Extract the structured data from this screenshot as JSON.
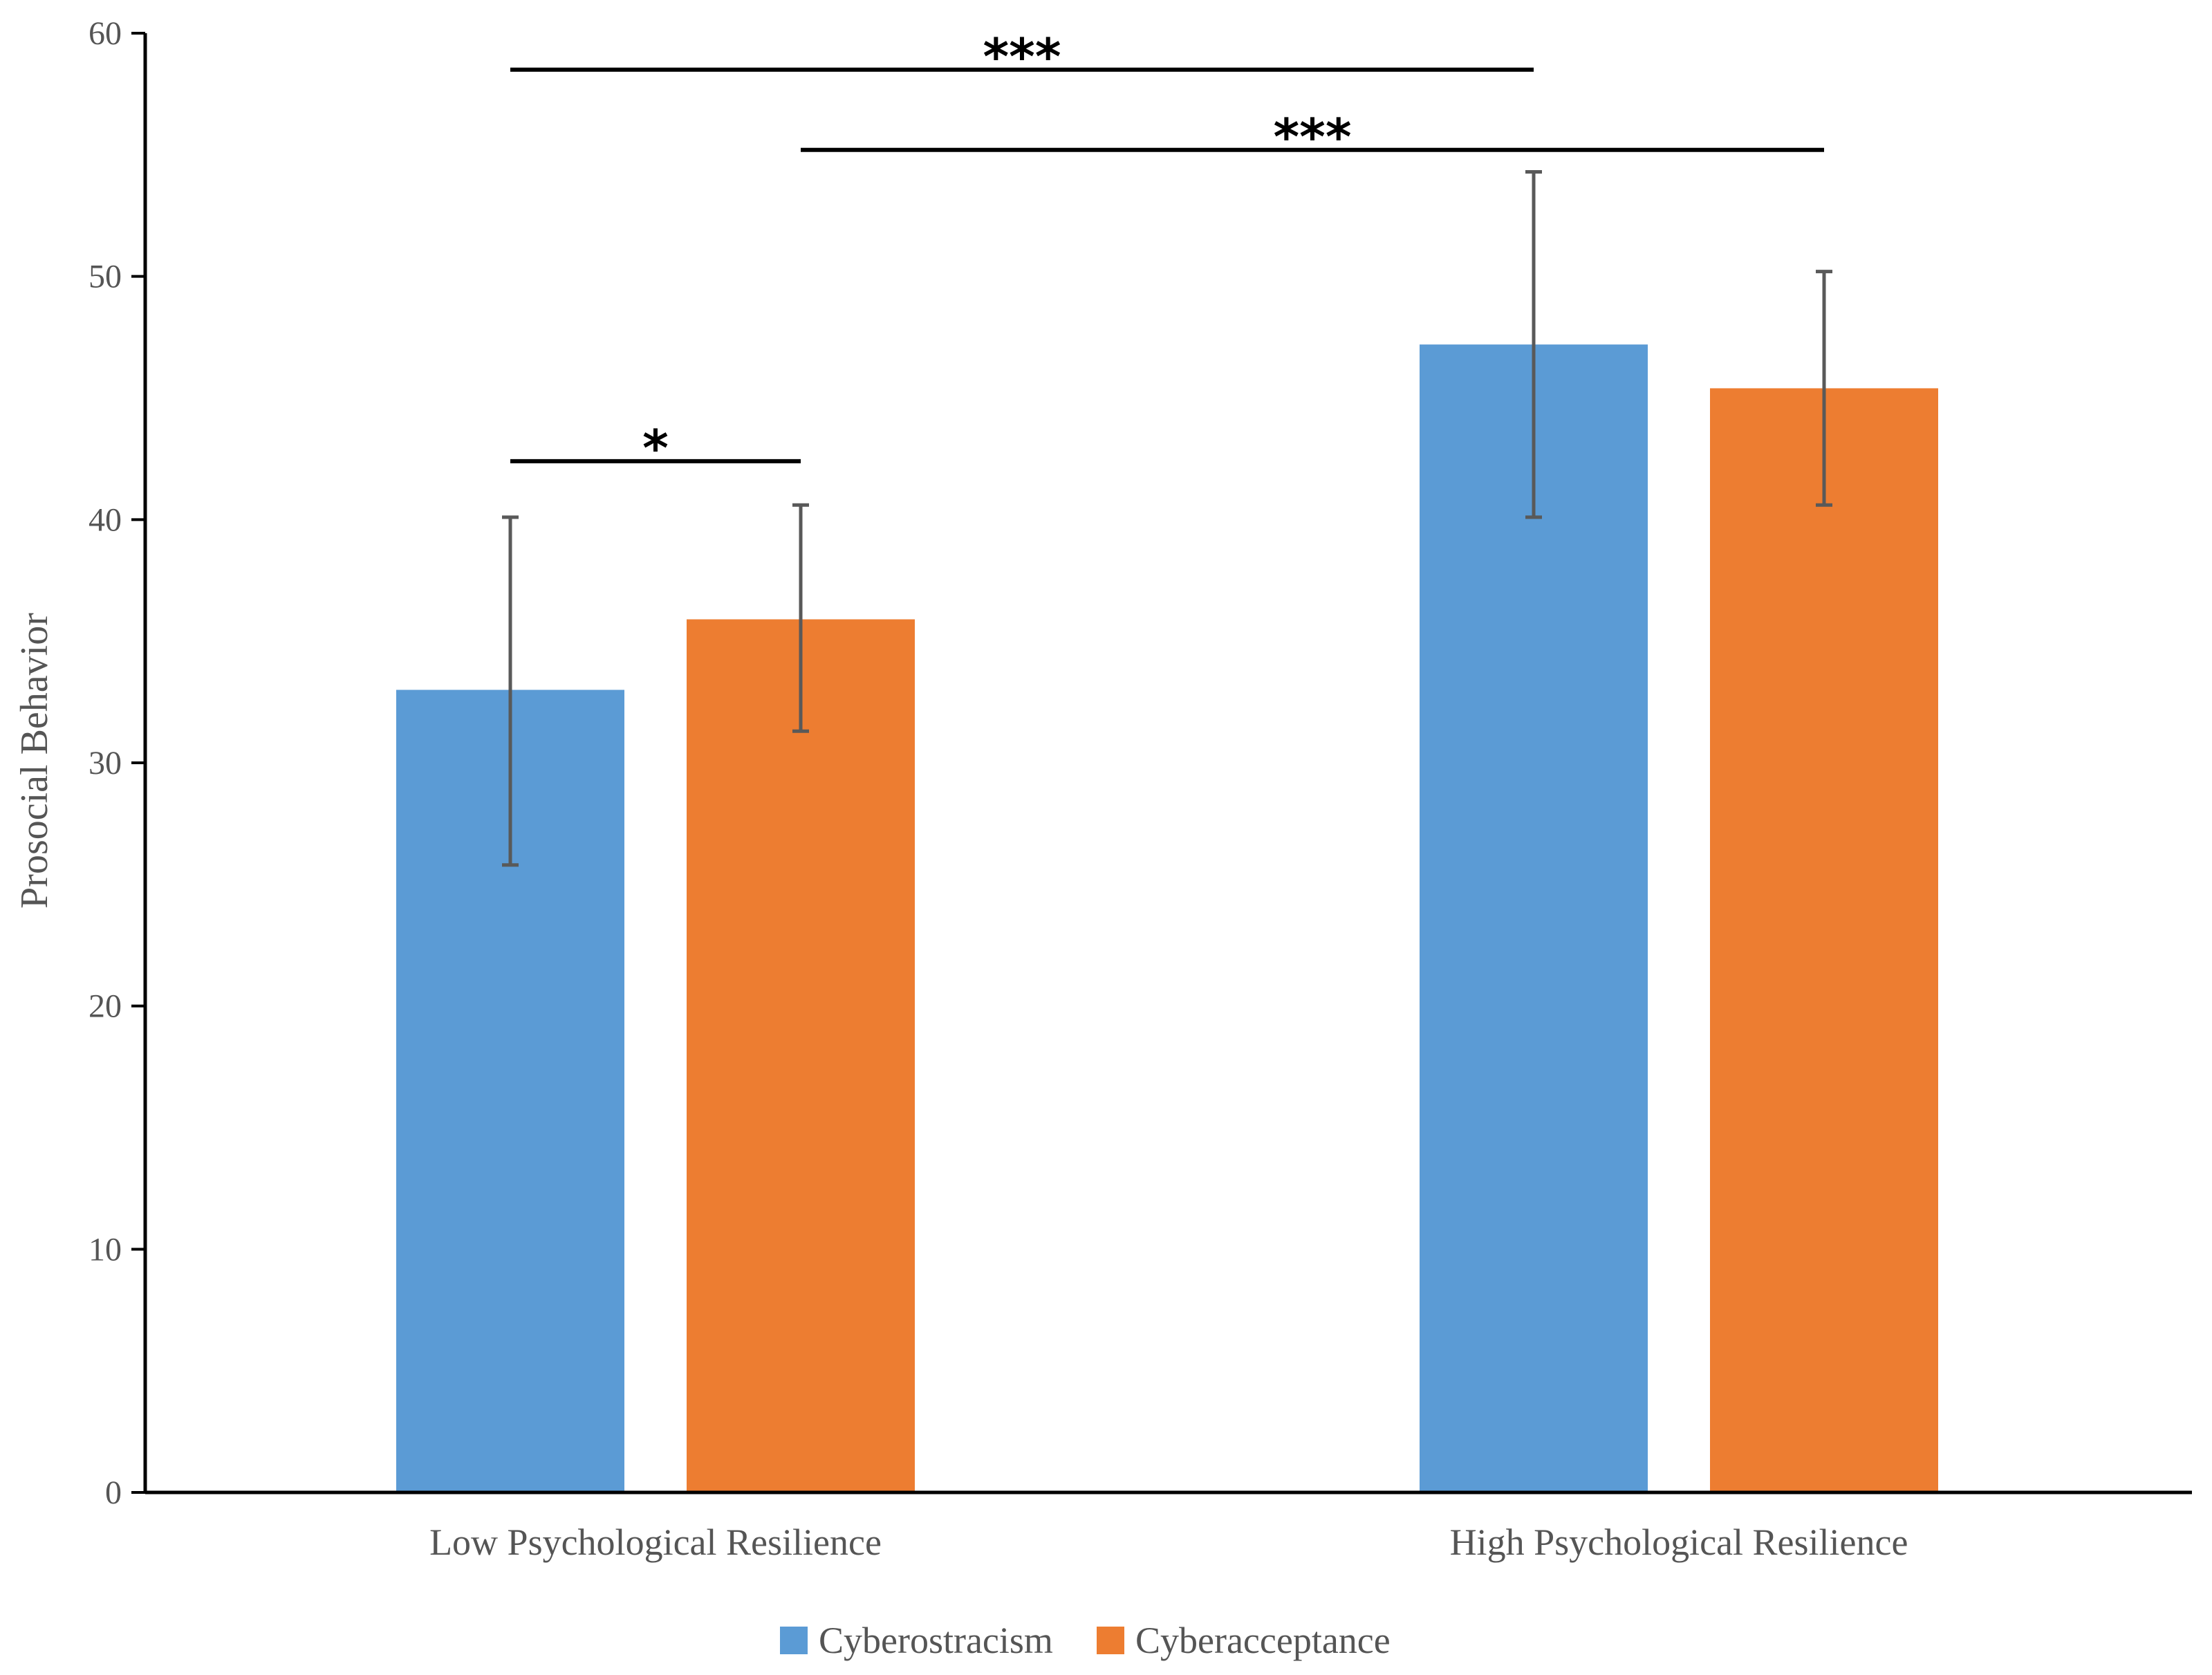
{
  "chart_data": {
    "type": "bar",
    "title": "",
    "xlabel": "",
    "ylabel": "Prosocial Behavior",
    "ylim": [
      0,
      60
    ],
    "yticks": [
      0,
      10,
      20,
      30,
      40,
      50,
      60
    ],
    "categories": [
      "Low Psychological Resilience",
      "High Psychological Resilience"
    ],
    "series": [
      {
        "name": "Cyberostracism",
        "color": "#5B9BD5",
        "values": [
          33.0,
          47.2
        ],
        "error_low": [
          25.8,
          40.1
        ],
        "error_high": [
          40.1,
          54.3
        ]
      },
      {
        "name": "Cyberacceptance",
        "color": "#ED7D31",
        "values": [
          35.9,
          45.4
        ],
        "error_low": [
          31.3,
          40.6
        ],
        "error_high": [
          40.6,
          50.2
        ]
      }
    ],
    "legend_position": "bottom-center",
    "annotations": [
      {
        "label": "*",
        "from": [
          0,
          0
        ],
        "to": [
          0,
          1
        ],
        "y": 42.4
      },
      {
        "label": "***",
        "from": [
          0,
          0
        ],
        "to": [
          1,
          0
        ],
        "y": 58.5
      },
      {
        "label": "***",
        "from": [
          0,
          1
        ],
        "to": [
          1,
          1
        ],
        "y": 55.2
      }
    ],
    "axis_color": "#000000",
    "errorbar_color": "#595959"
  }
}
